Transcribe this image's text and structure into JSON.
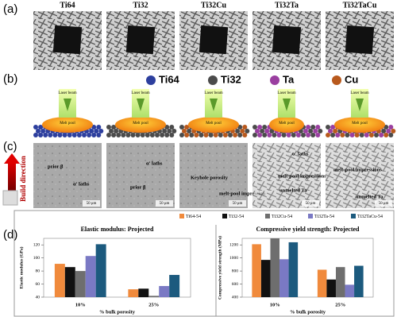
{
  "panels": {
    "a": "(a)",
    "b": "(b)",
    "c": "(c)",
    "d": "(d)"
  },
  "alloys": [
    "Ti64",
    "Ti32",
    "Ti32Cu",
    "Ti32Ta",
    "Ti32TaCu"
  ],
  "schematic": {
    "legend": [
      "Ti64",
      "Ti32",
      "Ta",
      "Cu"
    ],
    "beam": "Laser beam",
    "pool": "Melt pool"
  },
  "micrographs": {
    "build_direction": "Build direction",
    "scale": "50 μm",
    "annotations": [
      [
        "prior β",
        "α' laths"
      ],
      [
        "α' laths",
        "prior β"
      ],
      [
        "Keyhole porosity",
        "melt-pool impression"
      ],
      [
        "α' laths",
        "melt-pool impressions",
        "unmelted Ta"
      ],
      [
        "melt-pool impressions",
        "unmelted Ta"
      ]
    ]
  },
  "chart_data": [
    {
      "type": "bar",
      "title": "Elastic modulus: Projected",
      "y_label": "Elastic modulus (GPa)",
      "x_label": "% bulk porosity",
      "categories": [
        "10%",
        "25%"
      ],
      "ylim": [
        40,
        130
      ],
      "yticks": [
        40,
        60,
        80,
        100,
        120
      ],
      "series": [
        {
          "name": "Ti64-54",
          "color": "#f08a3c",
          "values": [
            91,
            52
          ]
        },
        {
          "name": "Ti32-54",
          "color": "#111111",
          "values": [
            86,
            53
          ]
        },
        {
          "name": "Ti32Cu-54",
          "color": "#6e6e6e",
          "values": [
            80,
            42
          ]
        },
        {
          "name": "Ti32Ta-54",
          "color": "#7a79c4",
          "values": [
            103,
            57
          ]
        },
        {
          "name": "Ti32TaCu-54",
          "color": "#1c5a7e",
          "values": [
            121,
            74
          ]
        }
      ]
    },
    {
      "type": "bar",
      "title": "Compressive yield strength: Projected",
      "y_label": "Compressive yield strength (MPa)",
      "x_label": "% bulk porosity",
      "categories": [
        "10%",
        "25%"
      ],
      "ylim": [
        400,
        1300
      ],
      "yticks": [
        400,
        600,
        800,
        1000,
        1200
      ],
      "series": [
        {
          "name": "Ti64-54",
          "color": "#f08a3c",
          "values": [
            1210,
            820
          ]
        },
        {
          "name": "Ti32-54",
          "color": "#111111",
          "values": [
            970,
            670
          ]
        },
        {
          "name": "Ti32Cu-54",
          "color": "#6e6e6e",
          "values": [
            1300,
            860
          ]
        },
        {
          "name": "Ti32Ta-54",
          "color": "#7a79c4",
          "values": [
            980,
            590
          ]
        },
        {
          "name": "Ti32TaCu-54",
          "color": "#1c5a7e",
          "values": [
            1240,
            880
          ]
        }
      ]
    }
  ]
}
